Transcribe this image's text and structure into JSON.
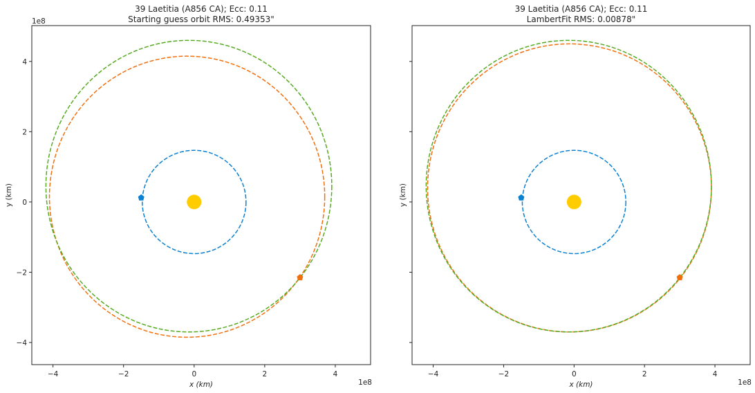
{
  "chart_data": [
    {
      "type": "line",
      "title": "39 Laetitia (A856 CA); Ecc: 0.11",
      "subtitle": "Starting guess orbit RMS: 0.49353\"",
      "xlabel": "x (km)",
      "ylabel": "y (km)",
      "x_offset_label": "1e8",
      "y_offset_label": "1e8",
      "xlim": [
        -4.6,
        5.0
      ],
      "ylim": [
        -4.63,
        5.02
      ],
      "xticks": [
        -4,
        -2,
        0,
        2,
        4
      ],
      "yticks": [
        -4,
        -2,
        0,
        2,
        4
      ],
      "tick_labels": [
        "−4",
        "−2",
        "0",
        "2",
        "4"
      ],
      "orbits": [
        {
          "name": "earth",
          "color": "#0a80d0",
          "cx": 0,
          "cy": 0,
          "rx": 1.47,
          "ry": 1.47
        },
        {
          "name": "fit",
          "color": "#f07010",
          "cx": -0.2,
          "cy": 0.15,
          "rx": 3.9,
          "ry": 4.0
        },
        {
          "name": "true",
          "color": "#55aa22",
          "cx": -0.15,
          "cy": 0.45,
          "rx": 4.05,
          "ry": 4.15
        }
      ],
      "points": [
        {
          "name": "earth-position",
          "color": "#0a80d0",
          "x": -1.5,
          "y": 0.12
        },
        {
          "name": "asteroid-position",
          "color": "#f07010",
          "x": 3.0,
          "y": -2.15
        }
      ],
      "sun": {
        "x": 0,
        "y": 0,
        "color": "#ffcc00"
      }
    },
    {
      "type": "line",
      "title": "39 Laetitia (A856 CA); Ecc: 0.11",
      "subtitle": "LambertFit RMS: 0.00878\"",
      "xlabel": "x (km)",
      "ylabel": "y (km)",
      "x_offset_label": "1e8",
      "xlim": [
        -4.6,
        5.0
      ],
      "ylim": [
        -4.63,
        5.02
      ],
      "xticks": [
        -4,
        -2,
        0,
        2,
        4
      ],
      "yticks": [
        -4,
        -2,
        0,
        2,
        4
      ],
      "tick_labels": [
        "−4",
        "−2",
        "0",
        "2",
        "4"
      ],
      "orbits": [
        {
          "name": "earth",
          "color": "#0a80d0",
          "cx": 0,
          "cy": 0,
          "rx": 1.47,
          "ry": 1.47
        },
        {
          "name": "fit",
          "color": "#f07010",
          "cx": -0.13,
          "cy": 0.4,
          "rx": 4.03,
          "ry": 4.1
        },
        {
          "name": "true",
          "color": "#55aa22",
          "cx": -0.15,
          "cy": 0.45,
          "rx": 4.05,
          "ry": 4.15
        }
      ],
      "points": [
        {
          "name": "earth-position",
          "color": "#0a80d0",
          "x": -1.5,
          "y": 0.12
        },
        {
          "name": "asteroid-position",
          "color": "#f07010",
          "x": 3.0,
          "y": -2.15
        }
      ],
      "sun": {
        "x": 0,
        "y": 0,
        "color": "#ffcc00"
      }
    }
  ]
}
